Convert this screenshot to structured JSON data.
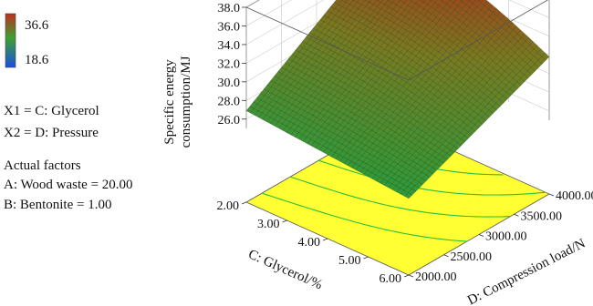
{
  "chart_data": {
    "type": "surface3d",
    "colorbar": {
      "max_label": "36.6",
      "min_label": "18.6",
      "max_color": "#d42a2a",
      "min_color": "#2a2ad4"
    },
    "factors": {
      "x1": "X1 = C: Glycerol",
      "x2": "X2 = D: Pressure",
      "actual_title": "Actual factors",
      "a": "A: Wood waste = 20.00",
      "b": "B: Bentonite = 1.00"
    },
    "z_axis": {
      "label_line1": "Specific energy",
      "label_line2": "consumption/MJ",
      "ticks": [
        "26.0",
        "28.0",
        "30.0",
        "32.0",
        "34.0",
        "36.0",
        "38.0"
      ],
      "range": [
        25,
        38
      ]
    },
    "x_axis": {
      "label": "C: Glycerol/%",
      "ticks": [
        "2.00",
        "3.00",
        "4.00",
        "5.00",
        "6.00"
      ],
      "range": [
        2,
        6
      ]
    },
    "y_axis": {
      "label": "D: Compression load/N",
      "ticks": [
        "2000.00",
        "2500.00",
        "3000.00",
        "3500.00",
        "4000.00"
      ],
      "range": [
        2000,
        4000
      ]
    },
    "surface_corners": [
      {
        "glycerol": 2,
        "load": 2000,
        "energy": 26.9
      },
      {
        "glycerol": 6,
        "load": 2000,
        "energy": 25.3
      },
      {
        "glycerol": 2,
        "load": 4000,
        "energy": 36.8
      },
      {
        "glycerol": 6,
        "load": 4000,
        "energy": 31.8
      }
    ],
    "colors": {
      "surface_low": "#2f9a3a",
      "surface_high": "#b02a18",
      "floor": "#ffff33",
      "contour": "#2bbf3a",
      "frame": "#555555"
    }
  }
}
